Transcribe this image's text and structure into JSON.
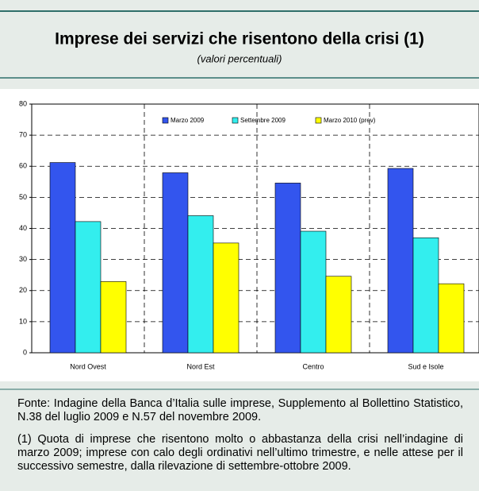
{
  "chart_data": {
    "type": "bar",
    "title": "Imprese dei servizi che risentono della crisi (1)",
    "subtitle": "(valori percentuali)",
    "categories": [
      "Nord Ovest",
      "Nord Est",
      "Centro",
      "Sud e Isole"
    ],
    "series": [
      {
        "name": "Marzo 2009",
        "color": "#3355ee",
        "values": [
          61.2,
          57.9,
          54.6,
          59.3
        ]
      },
      {
        "name": "Settembre 2009",
        "color": "#33eeee",
        "values": [
          42.2,
          44.1,
          39.1,
          37.0
        ]
      },
      {
        "name": "Marzo 2010 (prev)",
        "color": "#ffff00",
        "values": [
          22.9,
          35.3,
          24.6,
          22.2
        ]
      }
    ],
    "ylim": [
      0,
      80
    ],
    "yticks": [
      0,
      10,
      20,
      30,
      40,
      50,
      60,
      70,
      80
    ],
    "grid": true,
    "source": "Fonte: Indagine della Banca d’Italia sulle imprese, Supplemento al Bollettino Statistico, N.38 del luglio 2009 e N.57 del novembre 2009.",
    "note": "(1) Quota di imprese che risentono molto o abbastanza della crisi nell’indagine di marzo 2009; imprese con calo degli ordinativi nell’ultimo trimestre, e nelle attese per il successivo semestre, dalla rilevazione di settembre-ottobre 2009."
  }
}
